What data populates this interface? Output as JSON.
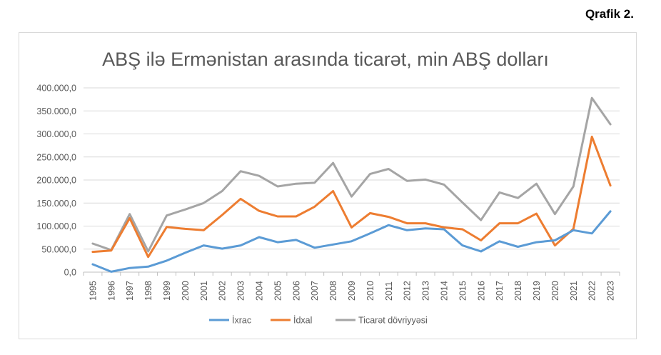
{
  "caption": "Qrafik 2.",
  "chart_data": {
    "type": "line",
    "title": "ABŞ ilə Ermənistan arasında ticarət, min ABŞ dolları",
    "xlabel": "",
    "ylabel": "",
    "ylim": [
      0,
      400000
    ],
    "yticks": [
      "0,0",
      "50.000,0",
      "100.000,0",
      "150.000,0",
      "200.000,0",
      "250.000,0",
      "300.000,0",
      "350.000,0",
      "400.000,0"
    ],
    "grid": true,
    "legend": "bottom",
    "x": [
      "1995",
      "1996",
      "1997",
      "1998",
      "1999",
      "2000",
      "2001",
      "2002",
      "2003",
      "2004",
      "2005",
      "2006",
      "2007",
      "2008",
      "2009",
      "2010",
      "2011",
      "2012",
      "2013",
      "2014",
      "2015",
      "2016",
      "2017",
      "2018",
      "2019",
      "2020",
      "2021",
      "2022",
      "2023"
    ],
    "series": [
      {
        "name": "İxrac",
        "color": "#5b9bd5",
        "values": [
          17000,
          1000,
          9000,
          12000,
          25000,
          42000,
          58000,
          51000,
          58000,
          76000,
          65000,
          70000,
          53000,
          60000,
          67000,
          84000,
          102000,
          91000,
          95000,
          93000,
          58000,
          45000,
          67000,
          55000,
          65000,
          69000,
          91000,
          84000,
          132000
        ]
      },
      {
        "name": "İdxal",
        "color": "#ed7d31",
        "values": [
          44000,
          47000,
          117000,
          33000,
          98000,
          94000,
          91000,
          124000,
          159000,
          133000,
          121000,
          121000,
          142000,
          176000,
          97000,
          128000,
          120000,
          106000,
          106000,
          97000,
          93000,
          69000,
          106000,
          106000,
          127000,
          58000,
          94000,
          294000,
          188000
        ]
      },
      {
        "name": "Ticarət dövriyyəsi",
        "color": "#a5a5a5",
        "values": [
          62000,
          48000,
          126000,
          45000,
          123000,
          136000,
          150000,
          176000,
          219000,
          209000,
          186000,
          192000,
          194000,
          237000,
          164000,
          213000,
          224000,
          198000,
          201000,
          190000,
          151000,
          113000,
          173000,
          161000,
          192000,
          126000,
          186000,
          378000,
          321000
        ]
      }
    ]
  }
}
